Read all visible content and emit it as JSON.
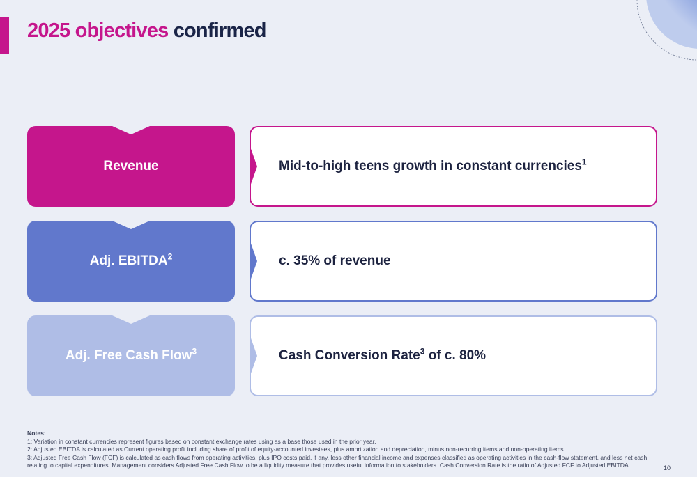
{
  "slide": {
    "title_highlight": "2025 objectives",
    "title_rest": "confirmed",
    "page_number": "10"
  },
  "objectives": [
    {
      "label": "Revenue",
      "label_sup": "",
      "value": "Mid-to-high teens growth in constant currencies",
      "value_sup": "1",
      "value_after": "",
      "color": "#c5168c"
    },
    {
      "label": "Adj. EBITDA",
      "label_sup": "2",
      "value": "c. 35% of revenue",
      "value_sup": "",
      "value_after": "",
      "color": "#6178cc"
    },
    {
      "label": "Adj. Free Cash Flow",
      "label_sup": "3",
      "value": "Cash Conversion Rate",
      "value_sup": "3",
      "value_after": " of c. 80%",
      "color": "#afbde6"
    }
  ],
  "notes": {
    "heading": "Notes:",
    "items": [
      "1: Variation in constant currencies represent figures based on constant exchange rates using as a base those used in the prior year.",
      "2: Adjusted EBITDA is calculated as Current operating profit including share of profit of equity-accounted investees, plus amortization and depreciation, minus non-recurring items and non-operating items.",
      "3: Adjusted Free Cash Flow (FCF) is calculated as cash flows from operating activities, plus IPO costs paid, if any, less other financial income and expenses classified as operating activities in the cash-flow statement, and less net cash relating to capital expenditures. Management considers Adjusted Free Cash Flow to be a liquidity measure that provides useful information to stakeholders. Cash Conversion Rate is the ratio of Adjusted FCF to Adjusted EBITDA."
    ]
  }
}
